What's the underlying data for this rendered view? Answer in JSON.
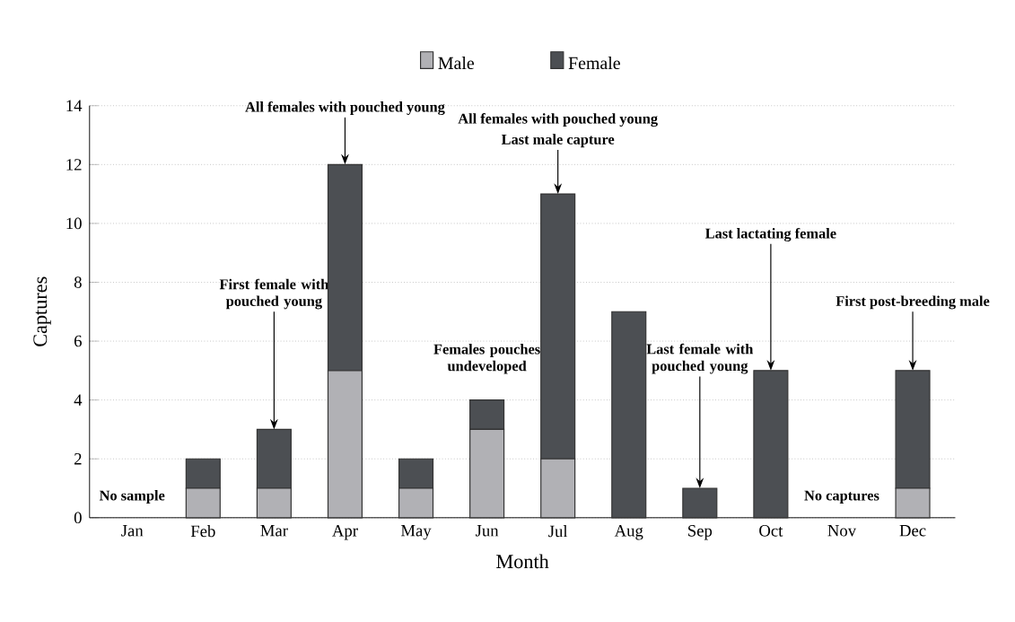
{
  "chart_data": {
    "type": "bar",
    "stacked": true,
    "xlabel": "Month",
    "ylabel": "Captures",
    "categories": [
      "Jan",
      "Feb",
      "Mar",
      "Apr",
      "May",
      "Jun",
      "Jul",
      "Aug",
      "Sep",
      "Oct",
      "Nov",
      "Dec"
    ],
    "series": [
      {
        "name": "Male",
        "color": "#b1b1b5",
        "values": [
          0,
          1,
          1,
          5,
          1,
          3,
          2,
          0,
          0,
          0,
          0,
          1
        ]
      },
      {
        "name": "Female",
        "color": "#4c4f53",
        "values": [
          0,
          1,
          2,
          7,
          1,
          1,
          9,
          7,
          1,
          5,
          0,
          4
        ]
      }
    ],
    "ylim": [
      0,
      14
    ],
    "yticks": [
      0,
      2,
      4,
      6,
      8,
      10,
      12,
      14
    ],
    "grid": "y",
    "legend": "top",
    "annotations": [
      {
        "text": "No sample",
        "x": "Jan",
        "y": 0
      },
      {
        "text": "First female with pouched young",
        "x": "Mar",
        "y": 3
      },
      {
        "text": "All females with pouched young",
        "x": "Apr",
        "y": 12
      },
      {
        "text": "Females pouches undeveloped",
        "x": "Jun",
        "y": 4
      },
      "All females with pouched young",
      {
        "text": "Last male capture",
        "x": "Jul",
        "y": 11
      },
      {
        "text": "Last female with pouched young",
        "x": "Sep",
        "y": 1
      },
      {
        "text": "Last lactating female",
        "x": "Oct",
        "y": 5
      },
      {
        "text": "No captures",
        "x": "Nov",
        "y": 0
      },
      {
        "text": "First post-breeding male",
        "x": "Dec",
        "y": 5
      }
    ]
  }
}
